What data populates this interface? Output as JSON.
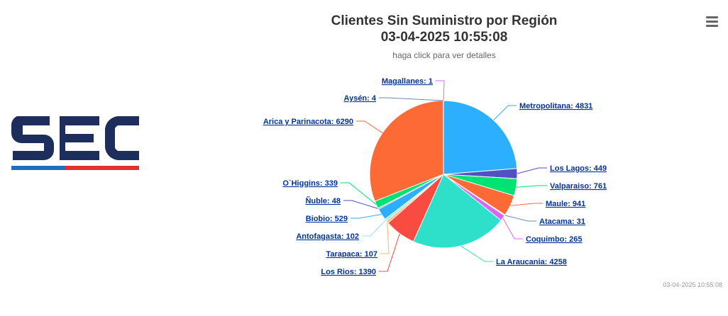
{
  "header": {
    "title_line1": "Clientes Sin Suministro por Región",
    "title_line2": "03-04-2025 10:55:08",
    "subtitle": "haga click para ver detalles"
  },
  "footer": {
    "timestamp": "03-04-2025 10:55:08"
  },
  "logo": {
    "name": "SEC",
    "colors": {
      "navy": "#1d2e5c",
      "blue": "#1f6fc0",
      "red": "#e03232"
    }
  },
  "menu": {
    "icon": "hamburger-icon"
  },
  "chart_data": {
    "type": "pie",
    "title": "Clientes Sin Suministro por Región",
    "subtitle": "haga click para ver detalles",
    "slices": [
      {
        "name": "Metropolitana",
        "value": 4831,
        "label": "Metropolitana: 4831",
        "color": "#2caffe"
      },
      {
        "name": "Los Lagos",
        "value": 449,
        "label": "Los Lagos: 449",
        "color": "#544fc5"
      },
      {
        "name": "Valparaiso",
        "value": 761,
        "label": "Valparaiso: 761",
        "color": "#00e272"
      },
      {
        "name": "Maule",
        "value": 941,
        "label": "Maule: 941",
        "color": "#fe6a35"
      },
      {
        "name": "Atacama",
        "value": 31,
        "label": "Atacama: 31",
        "color": "#6b8abc"
      },
      {
        "name": "Coquimbo",
        "value": 265,
        "label": "Coquimbo: 265",
        "color": "#d568fb"
      },
      {
        "name": "La Araucania",
        "value": 4258,
        "label": "La Araucania: 4258",
        "color": "#2ee0ca"
      },
      {
        "name": "Los Rios",
        "value": 1390,
        "label": "Los Rios: 1390",
        "color": "#fa4b42"
      },
      {
        "name": "Tarapaca",
        "value": 107,
        "label": "Tarapaca: 107",
        "color": "#feb56a"
      },
      {
        "name": "Antofagasta",
        "value": 102,
        "label": "Antofagasta: 102",
        "color": "#91e8e1"
      },
      {
        "name": "Biobio",
        "value": 529,
        "label": "Biobio: 529",
        "color": "#2caffe"
      },
      {
        "name": "Ñuble",
        "value": 48,
        "label": "Ñuble: 48",
        "color": "#544fc5"
      },
      {
        "name": "O`Higgins",
        "value": 339,
        "label": "O`Higgins: 339",
        "color": "#00e272"
      },
      {
        "name": "Arica y Parinacota",
        "value": 6290,
        "label": "Arica y Parinacota: 6290",
        "color": "#fe6a35"
      },
      {
        "name": "Aysén",
        "value": 4,
        "label": "Aysén: 4",
        "color": "#6b8abc"
      },
      {
        "name": "Magallanes",
        "value": 1,
        "label": "Magallanes: 1",
        "color": "#d568fb"
      }
    ]
  }
}
